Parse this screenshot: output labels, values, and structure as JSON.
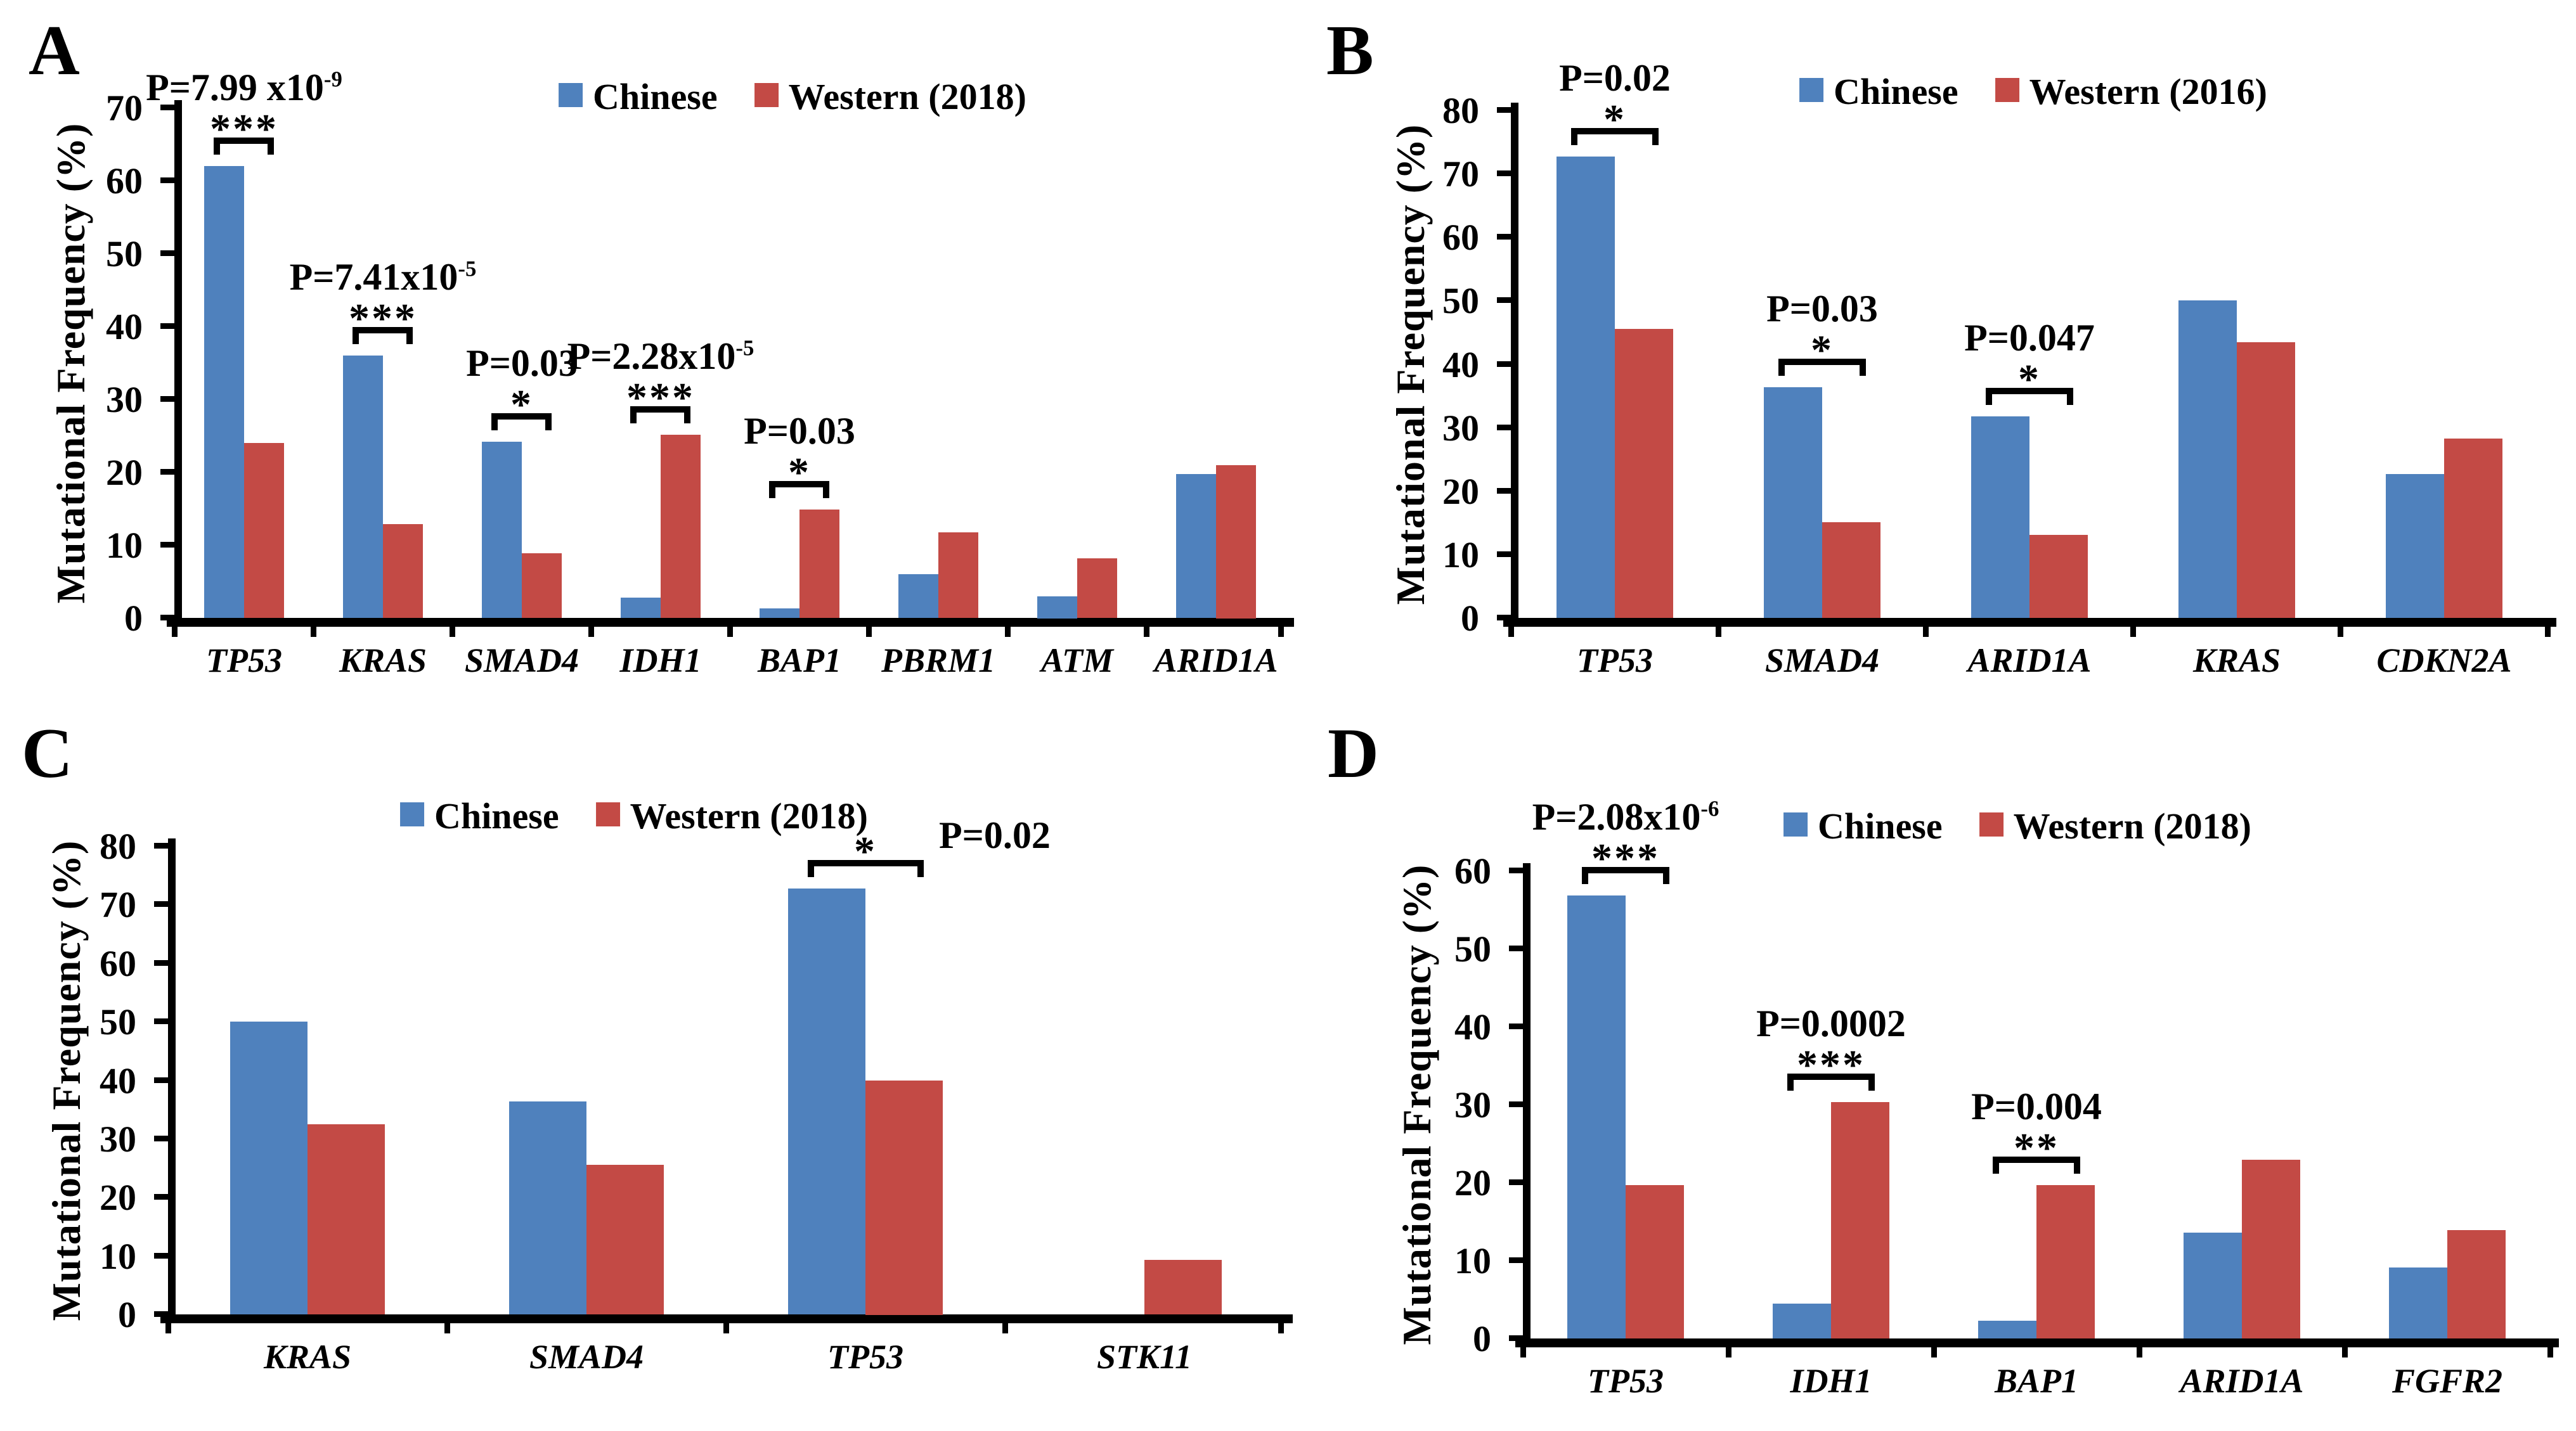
{
  "chart_data": [
    {
      "type": "bar",
      "panel_label": "A",
      "ylabel": "Mutational Frequency (%)",
      "ylim": [
        0,
        70
      ],
      "ytick_step": 10,
      "yticks": [
        0,
        10,
        20,
        30,
        40,
        50,
        60,
        70
      ],
      "grid": false,
      "legend_position": "top",
      "legend": [
        "Chinese",
        "Western (2018)"
      ],
      "categories": [
        "TP53",
        "KRAS",
        "SMAD4",
        "IDH1",
        "BAP1",
        "PBRM1",
        "ATM",
        "ARID1A"
      ],
      "series": [
        {
          "name": "Chinese",
          "color": "#4F81BD",
          "values": [
            62,
            36,
            24.2,
            2.8,
            1.3,
            6,
            3,
            19.7
          ]
        },
        {
          "name": "Western (2018)",
          "color": "#C34A45",
          "values": [
            24,
            12.9,
            8.9,
            25.1,
            14.9,
            11.7,
            8.2,
            21
          ]
        }
      ],
      "annotations": [
        {
          "group": 0,
          "p_base": "P=7.99 x10",
          "p_exp": "-9",
          "stars": "***",
          "style": "stacked"
        },
        {
          "group": 1,
          "p_base": "P=7.41x10",
          "p_exp": "-5",
          "stars": "***",
          "style": "stacked"
        },
        {
          "group": 2,
          "p_base": "P=0.03",
          "p_exp": "",
          "stars": "*",
          "style": "stacked"
        },
        {
          "group": 3,
          "p_base": "P=2.28x10",
          "p_exp": "-5",
          "stars": "***",
          "style": "stacked"
        },
        {
          "group": 4,
          "p_base": "P=0.03",
          "p_exp": "",
          "stars": "*",
          "style": "stacked"
        }
      ]
    },
    {
      "type": "bar",
      "panel_label": "B",
      "ylabel": "Mutational Frequency (%)",
      "ylim": [
        0,
        80
      ],
      "ytick_step": 10,
      "yticks": [
        0,
        10,
        20,
        30,
        40,
        50,
        60,
        70,
        80
      ],
      "grid": false,
      "legend_position": "top",
      "legend": [
        "Chinese",
        "Western (2016)"
      ],
      "categories": [
        "TP53",
        "SMAD4",
        "ARID1A",
        "KRAS",
        "CDKN2A"
      ],
      "series": [
        {
          "name": "Chinese",
          "color": "#4F81BD",
          "values": [
            72.7,
            36.4,
            31.8,
            50,
            22.7
          ]
        },
        {
          "name": "Western (2016)",
          "color": "#C34A45",
          "values": [
            45.5,
            15.1,
            13.1,
            43.4,
            28.3
          ]
        }
      ],
      "annotations": [
        {
          "group": 0,
          "p_base": "P=0.02",
          "p_exp": "",
          "stars": "*",
          "style": "stacked"
        },
        {
          "group": 1,
          "p_base": "P=0.03",
          "p_exp": "",
          "stars": "*",
          "style": "stacked"
        },
        {
          "group": 2,
          "p_base": "P=0.047",
          "p_exp": "",
          "stars": "*",
          "style": "stacked"
        }
      ]
    },
    {
      "type": "bar",
      "panel_label": "C",
      "ylabel": "Mutational Frequency (%)",
      "ylim": [
        0,
        80
      ],
      "ytick_step": 10,
      "yticks": [
        0,
        10,
        20,
        30,
        40,
        50,
        60,
        70,
        80
      ],
      "grid": false,
      "legend_position": "top",
      "legend": [
        "Chinese",
        "Western (2018)"
      ],
      "categories": [
        "KRAS",
        "SMAD4",
        "TP53",
        "STK11"
      ],
      "series": [
        {
          "name": "Chinese",
          "color": "#4F81BD",
          "values": [
            50,
            36.4,
            72.7,
            0
          ]
        },
        {
          "name": "Western (2018)",
          "color": "#C34A45",
          "values": [
            32.5,
            25.6,
            40,
            9.3
          ]
        }
      ],
      "annotations": [
        {
          "group": 2,
          "p_base": "P=0.02",
          "p_exp": "",
          "stars": "*",
          "style": "side"
        }
      ]
    },
    {
      "type": "bar",
      "panel_label": "D",
      "ylabel": "Mutational Frequency (%)",
      "ylim": [
        0,
        60
      ],
      "ytick_step": 10,
      "yticks": [
        0,
        10,
        20,
        30,
        40,
        50,
        60
      ],
      "grid": false,
      "legend_position": "top",
      "legend": [
        "Chinese",
        "Western (2018)"
      ],
      "categories": [
        "TP53",
        "IDH1",
        "BAP1",
        "ARID1A",
        "FGFR2"
      ],
      "series": [
        {
          "name": "Chinese",
          "color": "#4F81BD",
          "values": [
            56.8,
            4.5,
            2.3,
            13.6,
            9.1
          ]
        },
        {
          "name": "Western (2018)",
          "color": "#C34A45",
          "values": [
            19.7,
            30.3,
            19.7,
            22.9,
            13.9
          ]
        }
      ],
      "annotations": [
        {
          "group": 0,
          "p_base": "P=2.08x10",
          "p_exp": "-6",
          "stars": "***",
          "style": "stacked"
        },
        {
          "group": 1,
          "p_base": "P=0.0002",
          "p_exp": "",
          "stars": "***",
          "style": "stacked"
        },
        {
          "group": 2,
          "p_base": "P=0.004",
          "p_exp": "",
          "stars": "**",
          "style": "stacked"
        }
      ]
    }
  ]
}
